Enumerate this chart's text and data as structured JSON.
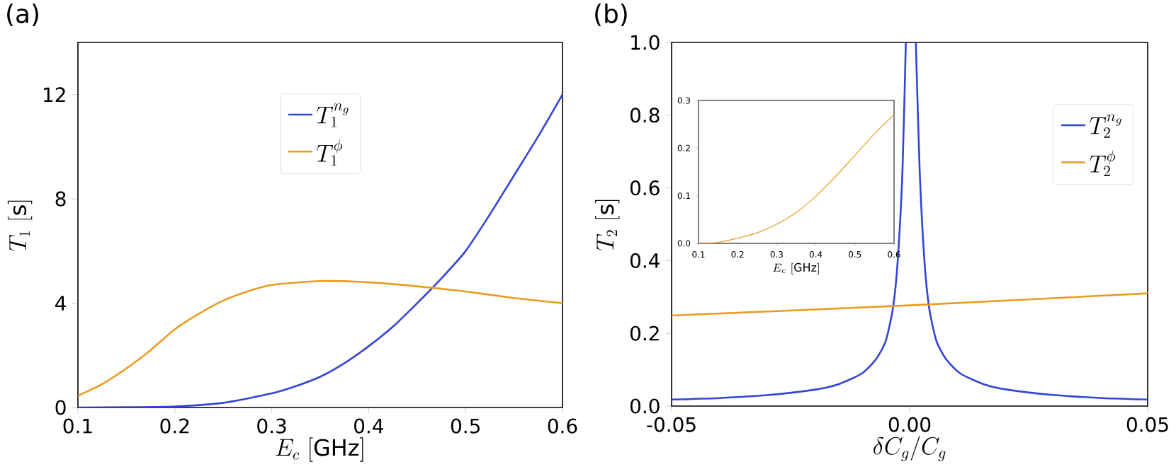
{
  "chart_data": [
    {
      "type": "line",
      "title": "(a)",
      "xlabel": "E_c\\ [\\mathrm{GHz}]",
      "ylabel": "T_1\\ [\\mathrm{s}]",
      "xlim": [
        0.1,
        0.6
      ],
      "ylim": [
        0,
        14
      ],
      "xticks": [
        0.1,
        0.2,
        0.3,
        0.4,
        0.5,
        0.6
      ],
      "yticks": [
        0,
        4,
        8,
        12
      ],
      "legend": "top",
      "grid": false,
      "series": [
        {
          "name": "T_1^{n_g}",
          "color": "#3444d6",
          "x": [
            0.1,
            0.15,
            0.2,
            0.25,
            0.3,
            0.325,
            0.35,
            0.375,
            0.4,
            0.425,
            0.45,
            0.475,
            0.5,
            0.525,
            0.55,
            0.575,
            0.6
          ],
          "values": [
            0,
            0.01,
            0.04,
            0.18,
            0.54,
            0.82,
            1.18,
            1.7,
            2.35,
            3.1,
            4.0,
            4.95,
            6.0,
            7.4,
            8.9,
            10.4,
            12
          ]
        },
        {
          "name": "T_1^{\\phi}",
          "color": "#e89c22",
          "x": [
            0.1,
            0.125,
            0.15,
            0.175,
            0.2,
            0.225,
            0.25,
            0.275,
            0.3,
            0.35,
            0.4,
            0.45,
            0.5,
            0.55,
            0.6
          ],
          "values": [
            0.45,
            0.9,
            1.5,
            2.2,
            3.0,
            3.6,
            4.1,
            4.45,
            4.7,
            4.85,
            4.8,
            4.65,
            4.45,
            4.2,
            4.0
          ]
        }
      ]
    },
    {
      "type": "line",
      "title": "(b)",
      "xlabel": "\\delta C_g/C_g",
      "ylabel": "T_2\\ [\\mathrm{s}]",
      "xlim": [
        -0.05,
        0.05
      ],
      "ylim": [
        0,
        1
      ],
      "xticks": [
        {
          "value": -0.05,
          "label": "-0.05"
        },
        {
          "value": 0,
          "label": "0.00"
        },
        {
          "value": 0.05,
          "label": "0.05"
        }
      ],
      "yticks": [
        {
          "value": 0,
          "label": "0.0"
        },
        {
          "value": 0.2,
          "label": "0.2"
        },
        {
          "value": 0.4,
          "label": "0.4"
        },
        {
          "value": 0.6,
          "label": "0.6"
        },
        {
          "value": 0.8,
          "label": "0.8"
        },
        {
          "value": 1,
          "label": "1.0"
        }
      ],
      "legend": "top right",
      "grid": false,
      "series": [
        {
          "name": "T_2^{n_g}",
          "color": "#3444d6",
          "x": [
            -0.05,
            -0.04,
            -0.03,
            -0.02,
            -0.015,
            -0.01,
            -0.007,
            -0.005,
            -0.0035,
            -0.0025,
            -0.0015,
            -0.0008,
            0.0003,
            0.0013,
            0.0021,
            0.0031,
            0.0041,
            0.0056,
            0.0076,
            0.0106,
            0.0156,
            0.0206,
            0.0306,
            0.0406,
            0.05
          ],
          "values": [
            0.018,
            0.022,
            0.03,
            0.045,
            0.06,
            0.09,
            0.13,
            0.18,
            0.27,
            0.4,
            0.65,
            1.0,
            null,
            1.0,
            0.65,
            0.4,
            0.27,
            0.18,
            0.13,
            0.09,
            0.06,
            0.045,
            0.03,
            0.022,
            0.018
          ]
        },
        {
          "name": "T_2^{\\phi}",
          "color": "#e89c22",
          "x": [
            -0.05,
            0,
            0.05
          ],
          "values": [
            0.249,
            0.277,
            0.31
          ]
        }
      ]
    },
    {
      "type": "line",
      "xlabel": "E_c\\ [\\mathrm{GHz}]",
      "xlim": [
        0.1,
        0.6
      ],
      "ylim": [
        0,
        0.3
      ],
      "xticks": [
        0.1,
        0.2,
        0.3,
        0.4,
        0.5,
        0.6
      ],
      "yticks": [
        {
          "value": 0,
          "label": "0.0"
        },
        {
          "value": 0.1,
          "label": "0.1"
        },
        {
          "value": 0.2,
          "label": "0.2"
        },
        {
          "value": 0.3,
          "label": "0.3"
        }
      ],
      "grid": false,
      "series": [
        {
          "color": "#e89c22",
          "x": [
            0.1,
            0.15,
            0.2,
            0.25,
            0.3,
            0.35,
            0.4,
            0.45,
            0.5,
            0.55,
            0.6
          ],
          "values": [
            0,
            0.002,
            0.011,
            0.022,
            0.04,
            0.065,
            0.099,
            0.14,
            0.185,
            0.23,
            0.27
          ]
        }
      ]
    }
  ]
}
